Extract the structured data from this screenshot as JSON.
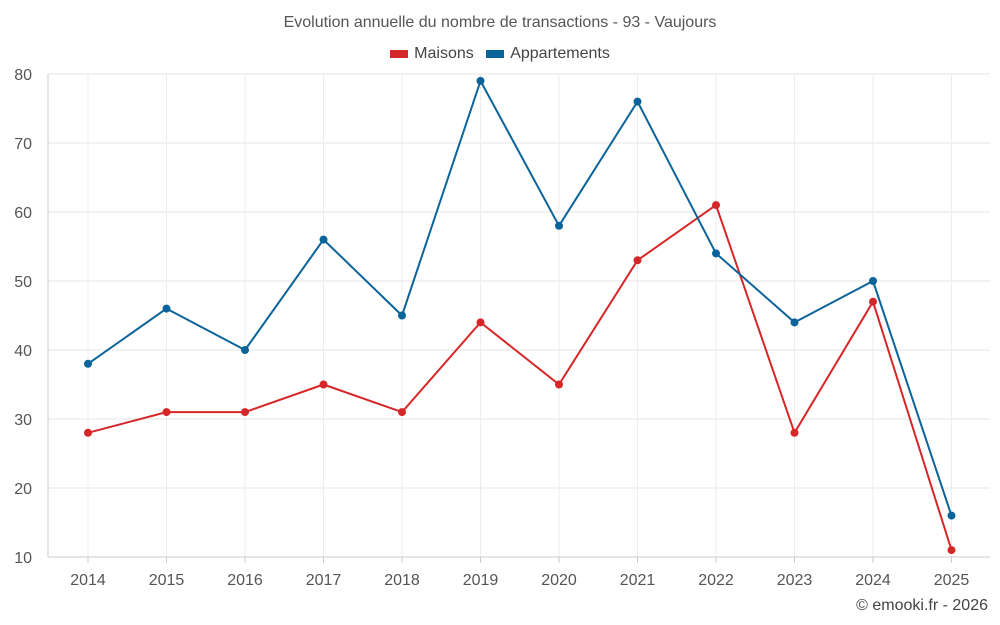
{
  "chart_data": {
    "type": "line",
    "title": "Evolution annuelle du nombre de transactions - 93 - Vaujours",
    "xlabel": "",
    "ylabel": "",
    "categories": [
      "2014",
      "2015",
      "2016",
      "2017",
      "2018",
      "2019",
      "2020",
      "2021",
      "2022",
      "2023",
      "2024",
      "2025"
    ],
    "ylim": [
      10,
      80
    ],
    "yticks": [
      10,
      20,
      30,
      40,
      50,
      60,
      70,
      80
    ],
    "grid": true,
    "legend_position": "top-center",
    "series": [
      {
        "name": "Maisons",
        "color": "#d62728",
        "values": [
          28,
          31,
          31,
          35,
          31,
          44,
          35,
          53,
          61,
          28,
          47,
          11
        ]
      },
      {
        "name": "Appartements",
        "color": "#0b6499",
        "values": [
          38,
          46,
          40,
          56,
          45,
          79,
          58,
          76,
          54,
          44,
          50,
          16
        ]
      }
    ]
  },
  "credit": "© emooki.fr - 2026"
}
